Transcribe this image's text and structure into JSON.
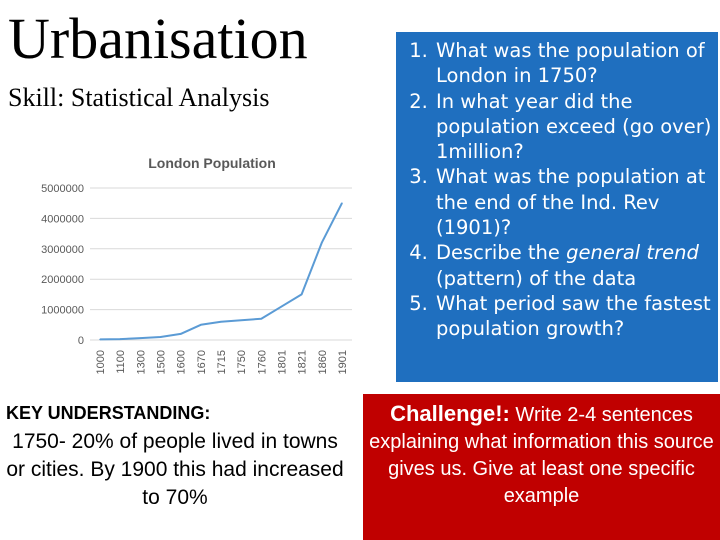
{
  "header": {
    "title": "Urbanisation",
    "subtitle": "Skill: Statistical Analysis"
  },
  "questions": [
    {
      "num": "1.",
      "text": "What was the population of London in 1750?",
      "italic": ""
    },
    {
      "num": "2.",
      "text": "In what year did the population exceed (go over) 1million?",
      "italic": ""
    },
    {
      "num": "3.",
      "text": "What was the population at the end of the Ind. Rev (1901)?",
      "italic": ""
    },
    {
      "num": "4.",
      "text_before": "Describe the ",
      "italic": "general trend",
      "text_after": " (pattern) of the data"
    },
    {
      "num": "5.",
      "text": "What period saw the fastest population growth?",
      "italic": ""
    }
  ],
  "key_understanding": {
    "heading": "KEY UNDERSTANDING:",
    "body": "1750- 20% of people lived in towns or cities. By 1900 this had increased to 70%"
  },
  "challenge": {
    "lead": "Challenge!:",
    "rest": " Write 2-4 sentences explaining what information this source gives us. Give at least one specific example"
  },
  "colors": {
    "question_box": "#1f6fbf",
    "challenge_box": "#c00000",
    "line": "#5b9bd5"
  },
  "chart_data": {
    "type": "line",
    "title": "London Population",
    "xlabel": "",
    "ylabel": "",
    "categories": [
      "1000",
      "1100",
      "1300",
      "1500",
      "1600",
      "1670",
      "1715",
      "1750",
      "1760",
      "1801",
      "1821",
      "1860",
      "1901"
    ],
    "series": [
      {
        "values": [
          20000,
          30000,
          60000,
          100000,
          200000,
          500000,
          600000,
          650000,
          700000,
          1100000,
          1500000,
          3200000,
          4500000
        ]
      }
    ],
    "y_ticks": [
      "0",
      "1000000",
      "2000000",
      "3000000",
      "4000000",
      "5000000"
    ],
    "ylim": [
      0,
      5000000
    ],
    "grid": true,
    "legend": "none"
  }
}
